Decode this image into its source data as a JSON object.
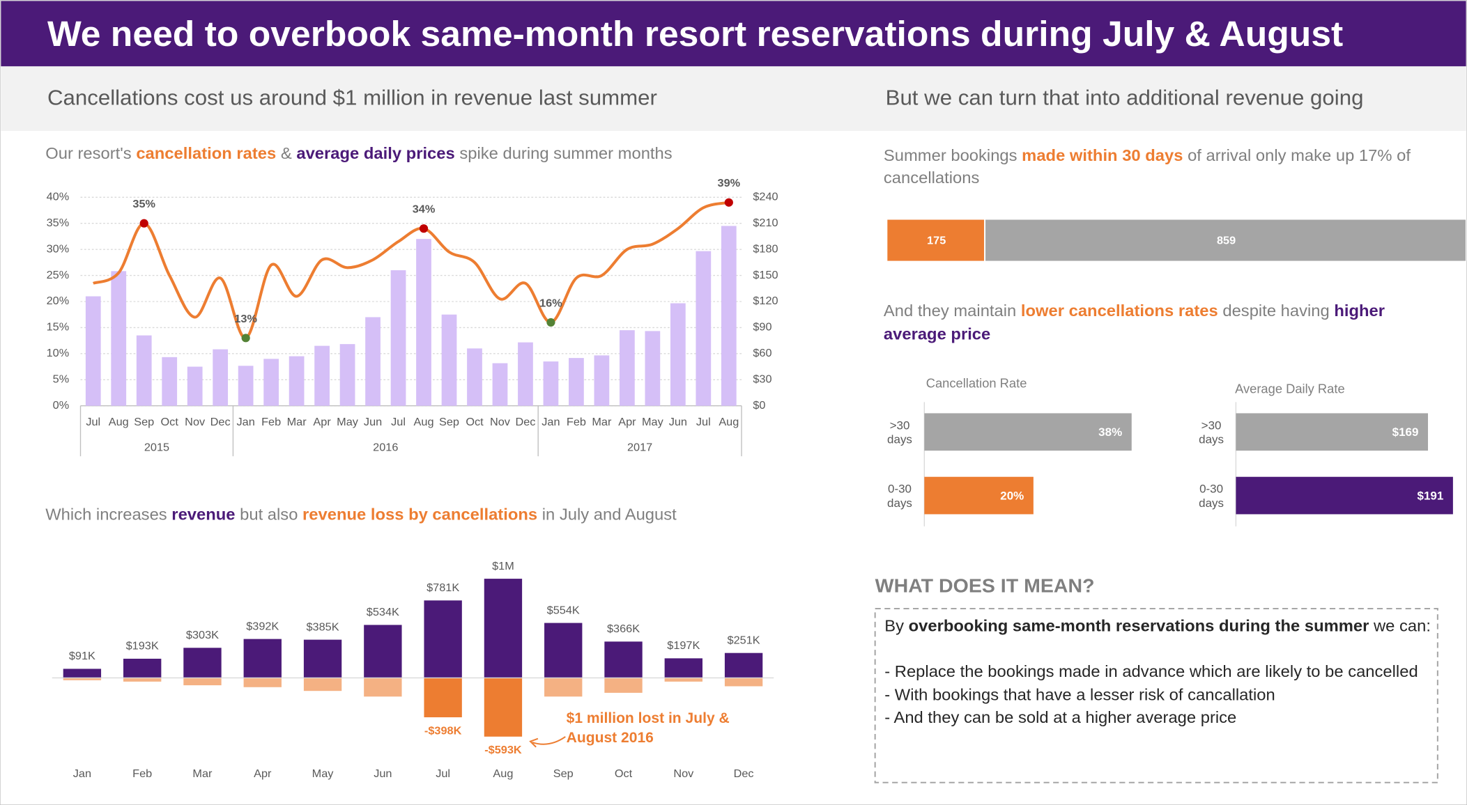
{
  "title": "We need to overbook same-month resort reservations during July & August",
  "left_heading": "Cancellations cost us around $1 million in revenue last summer",
  "right_heading": "But we can turn that into additional revenue going",
  "comparison_title_parts": [
    {
      "text": "And they maintain "
    },
    {
      "text": "lower cancellations rates",
      "color": "#ed7d31",
      "bold": true
    },
    {
      "text": " despite having "
    },
    {
      "text": "higher average price",
      "color": "#4b1a78",
      "bold": true
    }
  ],
  "notes": {
    "title": "WHAT DOES IT MEAN?",
    "intro_parts": [
      {
        "text": "By "
      },
      {
        "text": "overbooking same-month reservations during the summer",
        "bold": true
      },
      {
        "text": " we can:"
      }
    ],
    "points": [
      "- Replace the bookings made in advance which are likely to be cancelled",
      "- With bookings that have a lesser risk of cancallation",
      "- And they can be sold at a higher average price"
    ]
  },
  "chart_data": [
    {
      "type": "combo",
      "title_parts": [
        {
          "text": "Our resort's "
        },
        {
          "text": "cancellation rates",
          "color": "#ed7d31",
          "bold": true
        },
        {
          "text": " & "
        },
        {
          "text": "average daily prices",
          "color": "#4b1a78",
          "bold": true
        },
        {
          "text": " spike during summer months"
        }
      ],
      "category_groups": [
        {
          "name": "2015",
          "categories": [
            "Jul",
            "Aug",
            "Sep",
            "Oct",
            "Nov",
            "Dec"
          ]
        },
        {
          "name": "2016",
          "categories": [
            "Jan",
            "Feb",
            "Mar",
            "Apr",
            "May",
            "Jun",
            "Jul",
            "Aug",
            "Sep",
            "Oct",
            "Nov",
            "Dec"
          ]
        },
        {
          "name": "2017",
          "categories": [
            "Jan",
            "Feb",
            "Mar",
            "Apr",
            "May",
            "Jun",
            "Jul",
            "Aug"
          ]
        }
      ],
      "series": [
        {
          "kind": "bar",
          "axis": "y2",
          "color": "#d5bff7",
          "values": [
            126,
            155,
            81,
            56,
            45,
            65,
            46,
            54,
            57,
            69,
            71,
            102,
            156,
            192,
            105,
            66,
            49,
            73,
            51,
            55,
            58,
            87,
            86,
            118,
            178,
            207
          ]
        },
        {
          "kind": "line",
          "color": "#ed7d31",
          "values": [
            23.5,
            25.5,
            35,
            25,
            17,
            24.5,
            13,
            27,
            21,
            28,
            26.5,
            28,
            31.5,
            34,
            29.5,
            27.5,
            20.5,
            23.5,
            16,
            24.5,
            25,
            30,
            31,
            34,
            38,
            39
          ],
          "value_labels": [
            null,
            null,
            "35%",
            null,
            null,
            null,
            "13%",
            null,
            null,
            null,
            null,
            null,
            null,
            "34%",
            null,
            null,
            null,
            null,
            "16%",
            null,
            null,
            null,
            null,
            null,
            null,
            "39%"
          ],
          "point_colors": [
            null,
            null,
            "#c00000",
            null,
            null,
            null,
            "#548235",
            null,
            null,
            null,
            null,
            null,
            null,
            "#c00000",
            null,
            null,
            null,
            null,
            "#548235",
            null,
            null,
            null,
            null,
            null,
            null,
            "#c00000"
          ]
        }
      ],
      "ylim": [
        0,
        40
      ],
      "yticks": [
        {
          "value": 0,
          "label": "0%"
        },
        {
          "value": 5,
          "label": "5%"
        },
        {
          "value": 10,
          "label": "10%"
        },
        {
          "value": 15,
          "label": "15%"
        },
        {
          "value": 20,
          "label": "20%"
        },
        {
          "value": 25,
          "label": "25%"
        },
        {
          "value": 30,
          "label": "30%"
        },
        {
          "value": 35,
          "label": "35%"
        },
        {
          "value": 40,
          "label": "40%"
        }
      ],
      "y2lim": [
        0,
        240
      ],
      "y2ticks": [
        {
          "value": 0,
          "label": "$0"
        },
        {
          "value": 30,
          "label": "$30"
        },
        {
          "value": 60,
          "label": "$60"
        },
        {
          "value": 90,
          "label": "$90"
        },
        {
          "value": 120,
          "label": "$120"
        },
        {
          "value": 150,
          "label": "$150"
        },
        {
          "value": 180,
          "label": "$180"
        },
        {
          "value": 210,
          "label": "$210"
        },
        {
          "value": 240,
          "label": "$240"
        }
      ],
      "grid": true
    },
    {
      "type": "bar",
      "title_parts": [
        {
          "text": "Which increases "
        },
        {
          "text": "revenue",
          "color": "#4b1a78",
          "bold": true
        },
        {
          "text": " but also "
        },
        {
          "text": "revenue loss by cancellations",
          "color": "#ed7d31",
          "bold": true
        },
        {
          "text": " in July and August"
        }
      ],
      "categories": [
        "Jan",
        "Feb",
        "Mar",
        "Apr",
        "May",
        "Jun",
        "Jul",
        "Aug",
        "Sep",
        "Oct",
        "Nov",
        "Dec"
      ],
      "series": [
        {
          "color": "#4b1a78",
          "values": [
            91000,
            193000,
            303000,
            392000,
            385000,
            534000,
            781000,
            1000000,
            554000,
            366000,
            197000,
            251000
          ],
          "value_labels": [
            "$91K",
            "$193K",
            "$303K",
            "$392K",
            "$385K",
            "$534K",
            "$781K",
            "$1M",
            "$554K",
            "$366K",
            "$197K",
            "$251K"
          ]
        },
        {
          "colors": [
            "#f4b183",
            "#f4b183",
            "#f4b183",
            "#f4b183",
            "#f4b183",
            "#f4b183",
            "#ed7d31",
            "#ed7d31",
            "#f4b183",
            "#f4b183",
            "#f4b183",
            "#f4b183"
          ],
          "values": [
            -24000,
            -38000,
            -75000,
            -94000,
            -132000,
            -189000,
            -398000,
            -593000,
            -189000,
            -151000,
            -38000,
            -85000
          ],
          "value_labels": [
            null,
            null,
            null,
            null,
            null,
            null,
            "-$398K",
            "-$593K",
            null,
            null,
            null,
            null
          ]
        }
      ],
      "ylim": [
        -800000,
        1100000
      ],
      "annotation": "$1 million lost in July & August 2016"
    },
    {
      "type": "stacked_hbar",
      "title_parts": [
        {
          "text": "Summer bookings "
        },
        {
          "text": "made within 30 days",
          "color": "#ed7d31",
          "bold": true
        },
        {
          "text": " of arrival only make up 17% of cancellations"
        }
      ],
      "series": [
        {
          "color": "#ed7d31",
          "values": [
            175
          ]
        },
        {
          "color": "#a5a5a5",
          "values": [
            859
          ]
        }
      ],
      "xlim": [
        0,
        1034
      ]
    },
    {
      "type": "hbar",
      "title": "Cancellation Rate",
      "categories": [
        ">30 days",
        "0-30 days"
      ],
      "values": [
        38,
        20
      ],
      "value_labels": [
        "38%",
        "20%"
      ],
      "colors": [
        "#a5a5a5",
        "#ed7d31"
      ],
      "xlim": [
        0,
        50
      ]
    },
    {
      "type": "hbar",
      "title": "Average Daily Rate",
      "categories": [
        ">30 days",
        "0-30 days"
      ],
      "values": [
        169,
        191
      ],
      "value_labels": [
        "$169",
        "$191"
      ],
      "colors": [
        "#a5a5a5",
        "#4b1a78"
      ],
      "xlim": [
        0,
        240
      ]
    }
  ]
}
